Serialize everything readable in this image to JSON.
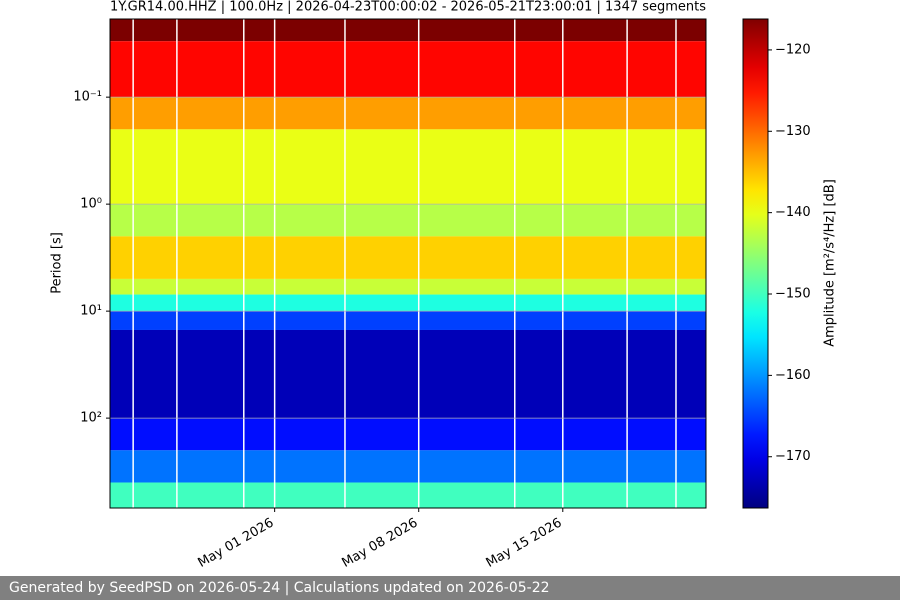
{
  "chart_data": {
    "type": "spectrogram",
    "title": "1Y.GR14.00.HHZ | 100.0Hz | 2026-04-23T00:00:02 - 2026-05-21T23:00:01 | 1347 segments",
    "ylabel": "Period [s]",
    "colorbar_label": "Amplitude [m²/s⁴/Hz] [dB]",
    "colormap": "jet",
    "y_log": true,
    "y_inverted": true,
    "grid": true,
    "xlim": [
      "2026-04-23T00:00:02",
      "2026-05-21T23:00:01"
    ],
    "xticks": [
      {
        "value": "2026-05-01T00:00:00",
        "label": "May 01 2026"
      },
      {
        "value": "2026-05-08T00:00:00",
        "label": "May 08 2026"
      },
      {
        "value": "2026-05-15T00:00:00",
        "label": "May 15 2026"
      }
    ],
    "ylim": [
      0.0186,
      692
    ],
    "yticks": [
      {
        "value": 0.1,
        "label": "10⁻¹"
      },
      {
        "value": 1,
        "label": "10⁰"
      },
      {
        "value": 10,
        "label": "10¹"
      },
      {
        "value": 100,
        "label": "10²"
      }
    ],
    "clim": [
      -176.3,
      -116.2
    ],
    "cticks": [
      {
        "value": -120,
        "label": "−120"
      },
      {
        "value": -130,
        "label": "−130"
      },
      {
        "value": -140,
        "label": "−140"
      },
      {
        "value": -150,
        "label": "−150"
      },
      {
        "value": -160,
        "label": "−160"
      },
      {
        "value": -170,
        "label": "−170"
      }
    ],
    "period_bins": [
      0.0186,
      0.03,
      0.1,
      0.2,
      1,
      2,
      5,
      7,
      10,
      15,
      100,
      200,
      400,
      692
    ],
    "values": [
      -116,
      -124,
      -133,
      -140,
      -143,
      -136,
      -142,
      -152,
      -165,
      -173,
      -168,
      -162,
      -150
    ],
    "gaps": [
      "2026-04-24T03:00:00",
      "2026-04-26T06:00:00",
      "2026-04-29T12:00:00",
      "2026-05-01T00:00:00",
      "2026-05-04T10:00:00",
      "2026-05-08T00:00:00",
      "2026-05-12T16:00:00",
      "2026-05-15T00:00:00",
      "2026-05-18T03:00:00",
      "2026-05-20T12:00:00"
    ]
  },
  "footer": "Generated by SeedPSD on 2026-05-24 | Calculations updated on 2026-05-22"
}
